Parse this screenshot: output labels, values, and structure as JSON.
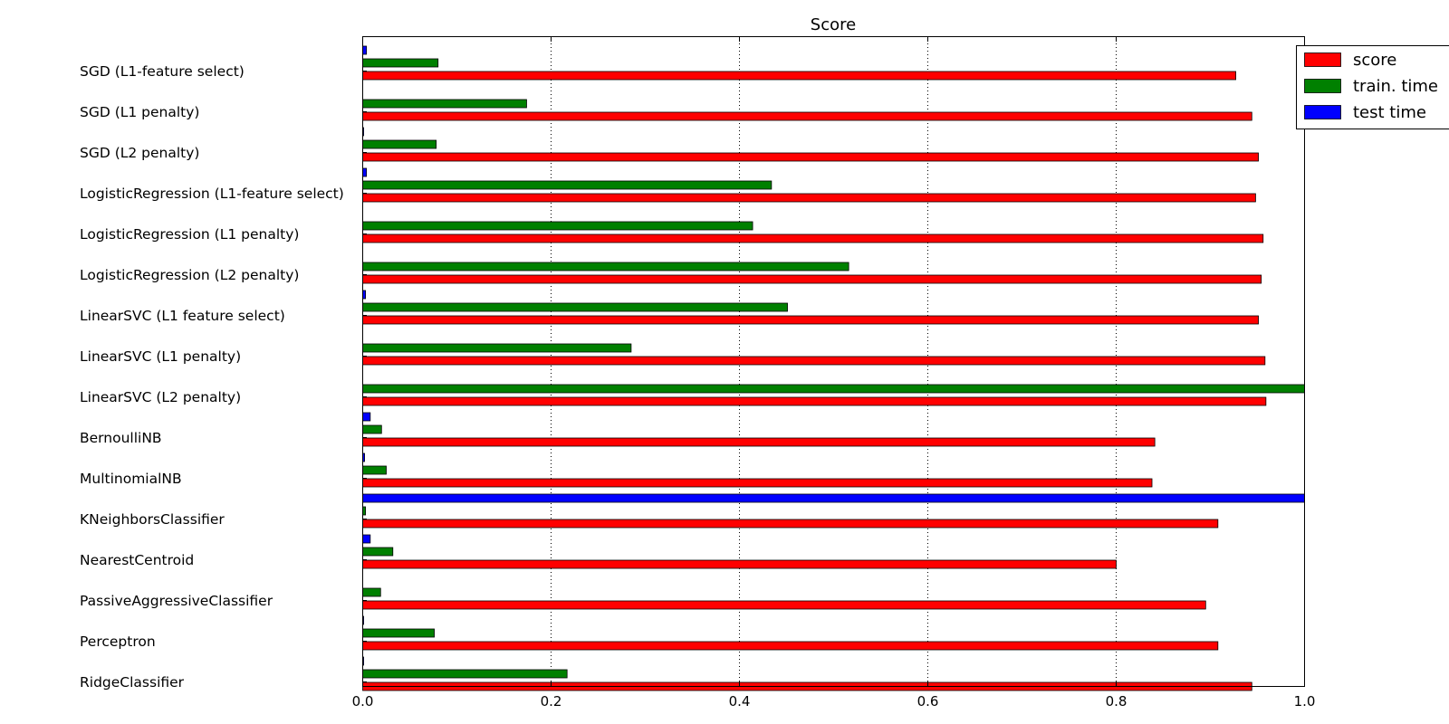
{
  "chart_data": {
    "type": "bar",
    "orientation": "horizontal",
    "title": "Score",
    "xlabel": "",
    "ylabel": "",
    "xlim": [
      0,
      1.0
    ],
    "xticks": [
      "0.0",
      "0.2",
      "0.4",
      "0.6",
      "0.8",
      "1.0"
    ],
    "grid": "vertical dotted",
    "legend_position": "top-right",
    "categories": [
      "SGD (L1-feature select)",
      "SGD (L1 penalty)",
      "SGD (L2 penalty)",
      "LogisticRegression (L1-feature select)",
      "LogisticRegression (L1 penalty)",
      "LogisticRegression (L2 penalty)",
      "LinearSVC (L1 feature select)",
      "LinearSVC (L1 penalty)",
      "LinearSVC (L2 penalty)",
      "BernoulliNB",
      "MultinomialNB",
      "KNeighborsClassifier",
      "NearestCentroid",
      "PassiveAggressiveClassifier",
      "Perceptron",
      "RidgeClassifier"
    ],
    "series": [
      {
        "name": "score",
        "color": "#ff0000",
        "values": [
          0.927,
          0.944,
          0.951,
          0.948,
          0.956,
          0.954,
          0.951,
          0.958,
          0.959,
          0.841,
          0.838,
          0.908,
          0.8,
          0.895,
          0.908,
          0.944
        ]
      },
      {
        "name": "train. time",
        "color": "#008000",
        "values": [
          0.08,
          0.174,
          0.078,
          0.434,
          0.414,
          0.516,
          0.451,
          0.285,
          1.0,
          0.02,
          0.025,
          0.003,
          0.032,
          0.019,
          0.076,
          0.217
        ]
      },
      {
        "name": "test time",
        "color": "#0000ff",
        "values": [
          0.004,
          0.0,
          0.001,
          0.004,
          0.0,
          0.0,
          0.003,
          0.0,
          0.0,
          0.008,
          0.002,
          1.0,
          0.008,
          0.0,
          0.001,
          0.001
        ]
      }
    ]
  }
}
